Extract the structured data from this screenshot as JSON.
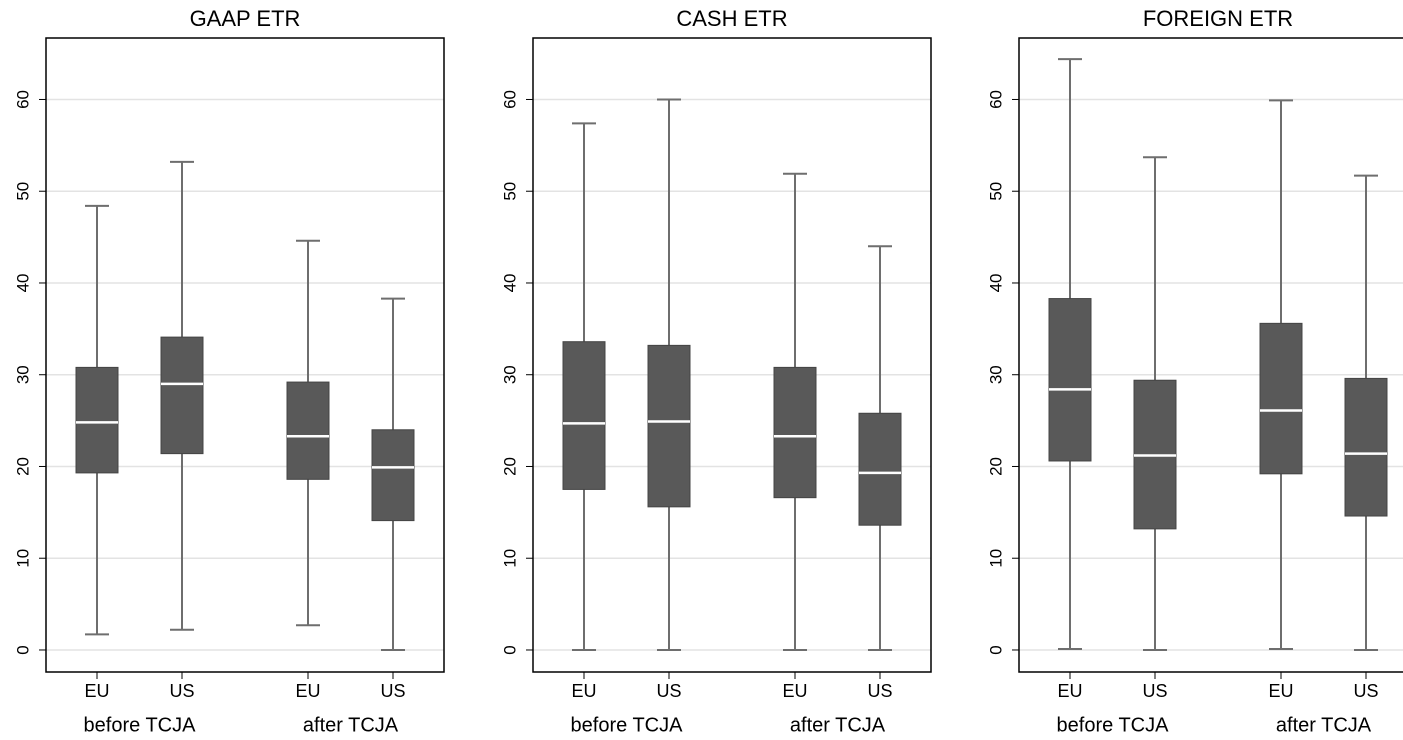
{
  "chart_data": [
    {
      "type": "box",
      "title": "GAAP ETR",
      "ylim": [
        -2.4,
        66.7
      ],
      "yticks": [
        0,
        10,
        20,
        30,
        40,
        50,
        60
      ],
      "grid": true,
      "color": "#595959",
      "median_color": "#ffffff",
      "groups": [
        {
          "name": "before TCJA",
          "categories": [
            "EU",
            "US"
          ],
          "boxes": [
            {
              "whislo": 1.7,
              "q1": 19.3,
              "med": 24.8,
              "q3": 30.8,
              "whishi": 48.4
            },
            {
              "whislo": 2.2,
              "q1": 21.4,
              "med": 29.0,
              "q3": 34.1,
              "whishi": 53.2
            }
          ]
        },
        {
          "name": "after TCJA",
          "categories": [
            "EU",
            "US"
          ],
          "boxes": [
            {
              "whislo": 2.7,
              "q1": 18.6,
              "med": 23.3,
              "q3": 29.2,
              "whishi": 44.6
            },
            {
              "whislo": 0,
              "q1": 14.1,
              "med": 19.9,
              "q3": 24.0,
              "whishi": 38.3
            }
          ]
        }
      ]
    },
    {
      "type": "box",
      "title": "CASH ETR",
      "ylim": [
        -2.4,
        66.7
      ],
      "yticks": [
        0,
        10,
        20,
        30,
        40,
        50,
        60
      ],
      "grid": true,
      "color": "#595959",
      "median_color": "#ffffff",
      "groups": [
        {
          "name": "before TCJA",
          "categories": [
            "EU",
            "US"
          ],
          "boxes": [
            {
              "whislo": 0,
              "q1": 17.5,
              "med": 24.7,
              "q3": 33.6,
              "whishi": 57.4
            },
            {
              "whislo": 0,
              "q1": 15.6,
              "med": 24.9,
              "q3": 33.2,
              "whishi": 60.0
            }
          ]
        },
        {
          "name": "after TCJA",
          "categories": [
            "EU",
            "US"
          ],
          "boxes": [
            {
              "whislo": 0,
              "q1": 16.6,
              "med": 23.3,
              "q3": 30.8,
              "whishi": 51.9
            },
            {
              "whislo": 0,
              "q1": 13.6,
              "med": 19.3,
              "q3": 25.8,
              "whishi": 44.0
            }
          ]
        }
      ]
    },
    {
      "type": "box",
      "title": "FOREIGN ETR",
      "ylim": [
        -2.4,
        66.7
      ],
      "yticks": [
        0,
        10,
        20,
        30,
        40,
        50,
        60
      ],
      "grid": true,
      "color": "#595959",
      "median_color": "#ffffff",
      "groups": [
        {
          "name": "before TCJA",
          "categories": [
            "EU",
            "US"
          ],
          "boxes": [
            {
              "whislo": 0.1,
              "q1": 20.6,
              "med": 28.4,
              "q3": 38.3,
              "whishi": 64.4
            },
            {
              "whislo": 0,
              "q1": 13.2,
              "med": 21.2,
              "q3": 29.4,
              "whishi": 53.7
            }
          ]
        },
        {
          "name": "after TCJA",
          "categories": [
            "EU",
            "US"
          ],
          "boxes": [
            {
              "whislo": 0.1,
              "q1": 19.2,
              "med": 26.1,
              "q3": 35.6,
              "whishi": 59.9
            },
            {
              "whislo": 0,
              "q1": 14.6,
              "med": 21.4,
              "q3": 29.6,
              "whishi": 51.7
            }
          ]
        }
      ]
    }
  ]
}
